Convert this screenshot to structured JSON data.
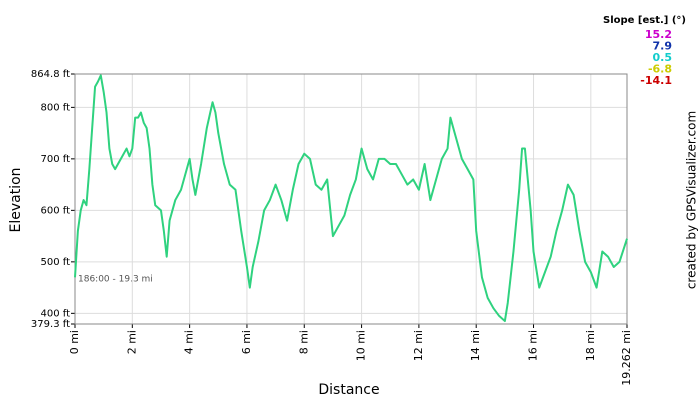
{
  "chart_data": {
    "type": "line",
    "x_label": "Distance",
    "y_label": "Elevation",
    "annotation": "186:00 - 19.3 mi",
    "credit": "created by GPSVisualizer.com",
    "legend": {
      "title": "Slope [est.] (°)",
      "items": [
        {
          "label": 15.2,
          "color": "#cc00cc"
        },
        {
          "label": 7.9,
          "color": "#1133aa"
        },
        {
          "label": 0.5,
          "color": "#11cccc"
        },
        {
          "label": -6.8,
          "color": "#cccc00"
        },
        {
          "label": -14.1,
          "color": "#cc0000"
        }
      ]
    },
    "x": [
      0,
      0.1,
      0.2,
      0.3,
      0.4,
      0.5,
      0.6,
      0.7,
      0.8,
      0.9,
      1.0,
      1.1,
      1.2,
      1.3,
      1.4,
      1.6,
      1.8,
      1.9,
      2.0,
      2.1,
      2.2,
      2.3,
      2.4,
      2.5,
      2.6,
      2.7,
      2.8,
      3.0,
      3.1,
      3.2,
      3.3,
      3.5,
      3.7,
      3.9,
      4.0,
      4.1,
      4.2,
      4.4,
      4.6,
      4.8,
      4.9,
      5.0,
      5.2,
      5.4,
      5.6,
      5.8,
      6.0,
      6.1,
      6.2,
      6.4,
      6.6,
      6.8,
      7.0,
      7.2,
      7.4,
      7.6,
      7.8,
      8.0,
      8.2,
      8.4,
      8.6,
      8.8,
      9.0,
      9.2,
      9.4,
      9.6,
      9.8,
      10.0,
      10.2,
      10.4,
      10.6,
      10.8,
      11.0,
      11.2,
      11.4,
      11.6,
      11.8,
      12.0,
      12.2,
      12.4,
      12.6,
      12.8,
      13.0,
      13.1,
      13.3,
      13.5,
      13.7,
      13.9,
      14.0,
      14.2,
      14.4,
      14.6,
      14.8,
      15.0,
      15.1,
      15.3,
      15.5,
      15.6,
      15.7,
      15.9,
      16.0,
      16.2,
      16.4,
      16.6,
      16.8,
      17.0,
      17.2,
      17.4,
      17.6,
      17.8,
      18.0,
      18.2,
      18.4,
      18.6,
      18.8,
      19.0,
      19.262
    ],
    "series": [
      {
        "name": "Elevation",
        "color": "#2fd27f",
        "values": [
          470,
          560,
          600,
          620,
          610,
          680,
          760,
          840,
          850,
          862,
          830,
          790,
          720,
          690,
          680,
          700,
          720,
          705,
          720,
          780,
          780,
          790,
          770,
          760,
          720,
          650,
          610,
          600,
          560,
          510,
          580,
          620,
          640,
          680,
          700,
          660,
          630,
          690,
          760,
          810,
          790,
          750,
          690,
          650,
          640,
          560,
          490,
          450,
          490,
          540,
          600,
          620,
          650,
          620,
          580,
          640,
          690,
          710,
          700,
          650,
          640,
          660,
          550,
          570,
          590,
          630,
          660,
          720,
          680,
          660,
          700,
          700,
          690,
          690,
          670,
          650,
          660,
          640,
          690,
          620,
          660,
          700,
          720,
          780,
          740,
          700,
          680,
          660,
          560,
          470,
          430,
          410,
          395,
          385,
          420,
          520,
          640,
          720,
          720,
          600,
          520,
          450,
          480,
          510,
          560,
          600,
          650,
          630,
          560,
          500,
          480,
          450,
          520,
          510,
          490,
          500,
          545
        ]
      }
    ],
    "xlim": [
      0,
      19.262
    ],
    "ylim": [
      379.3,
      864.8
    ],
    "xticks": [
      {
        "value": 0,
        "label": "0 mi"
      },
      {
        "value": 2,
        "label": "2 mi"
      },
      {
        "value": 4,
        "label": "4 mi"
      },
      {
        "value": 6,
        "label": "6 mi"
      },
      {
        "value": 8,
        "label": "8 mi"
      },
      {
        "value": 10,
        "label": "10 mi"
      },
      {
        "value": 12,
        "label": "12 mi"
      },
      {
        "value": 14,
        "label": "14 mi"
      },
      {
        "value": 16,
        "label": "16 mi"
      },
      {
        "value": 18,
        "label": "18 mi"
      },
      {
        "value": 19.262,
        "label": "19.262 mi"
      }
    ],
    "yticks": [
      {
        "value": 379.3,
        "label": "379.3 ft"
      },
      {
        "value": 400,
        "label": "400 ft"
      },
      {
        "value": 500,
        "label": "500 ft"
      },
      {
        "value": 600,
        "label": "600 ft"
      },
      {
        "value": 700,
        "label": "700 ft"
      },
      {
        "value": 800,
        "label": "800 ft"
      },
      {
        "value": 864.8,
        "label": "864.8 ft"
      }
    ],
    "grid": true
  }
}
